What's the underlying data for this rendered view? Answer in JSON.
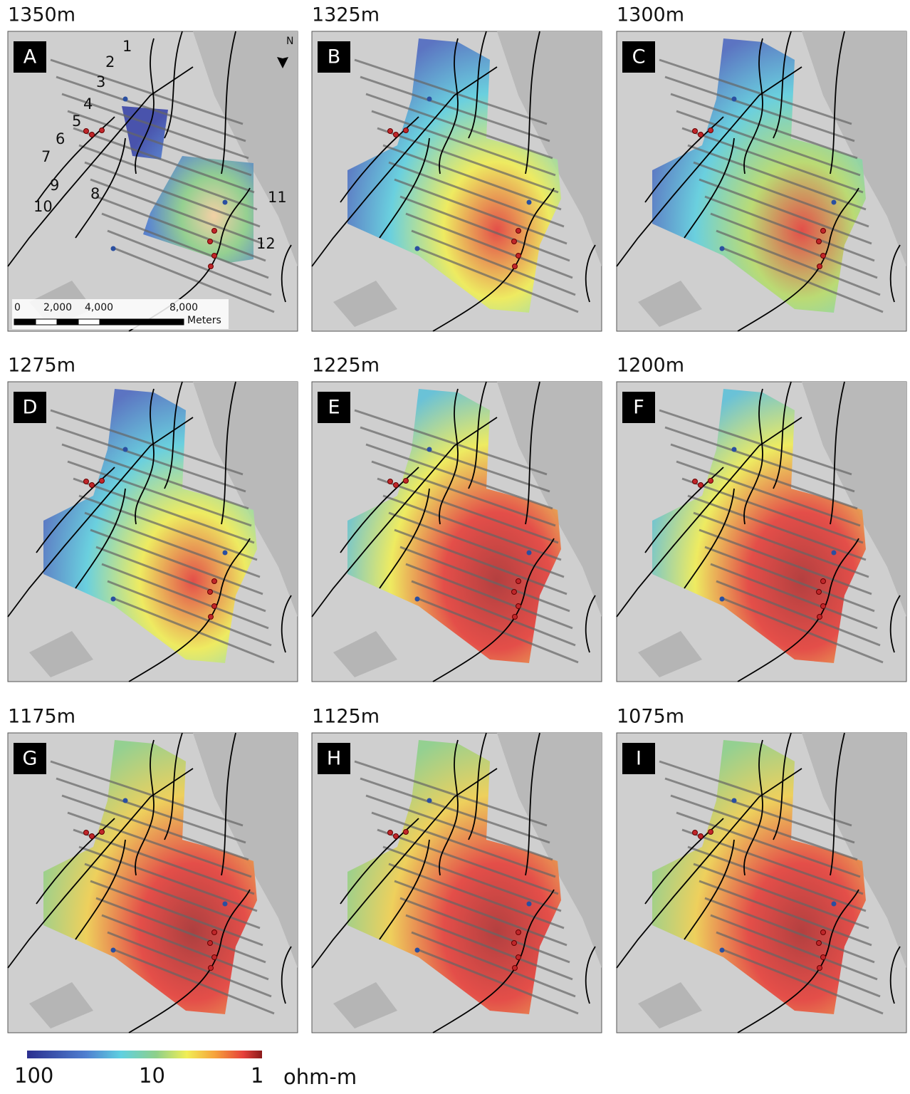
{
  "panels": [
    {
      "depth": "1350m",
      "letter": "A"
    },
    {
      "depth": "1325m",
      "letter": "B"
    },
    {
      "depth": "1300m",
      "letter": "C"
    },
    {
      "depth": "1275m",
      "letter": "D"
    },
    {
      "depth": "1225m",
      "letter": "E"
    },
    {
      "depth": "1200m",
      "letter": "F"
    },
    {
      "depth": "1175m",
      "letter": "G"
    },
    {
      "depth": "1125m",
      "letter": "H"
    },
    {
      "depth": "1075m",
      "letter": "I"
    }
  ],
  "profile_labels": [
    "1",
    "2",
    "3",
    "4",
    "5",
    "6",
    "7",
    "8",
    "9",
    "10",
    "11",
    "12"
  ],
  "north_label": "N",
  "scale_bar": {
    "labels": [
      "0",
      "2,000",
      "4,000",
      "8,000"
    ],
    "unit": "Meters"
  },
  "colorbar": {
    "labels": [
      "100",
      "10",
      "1"
    ],
    "unit": "ohm-m"
  }
}
